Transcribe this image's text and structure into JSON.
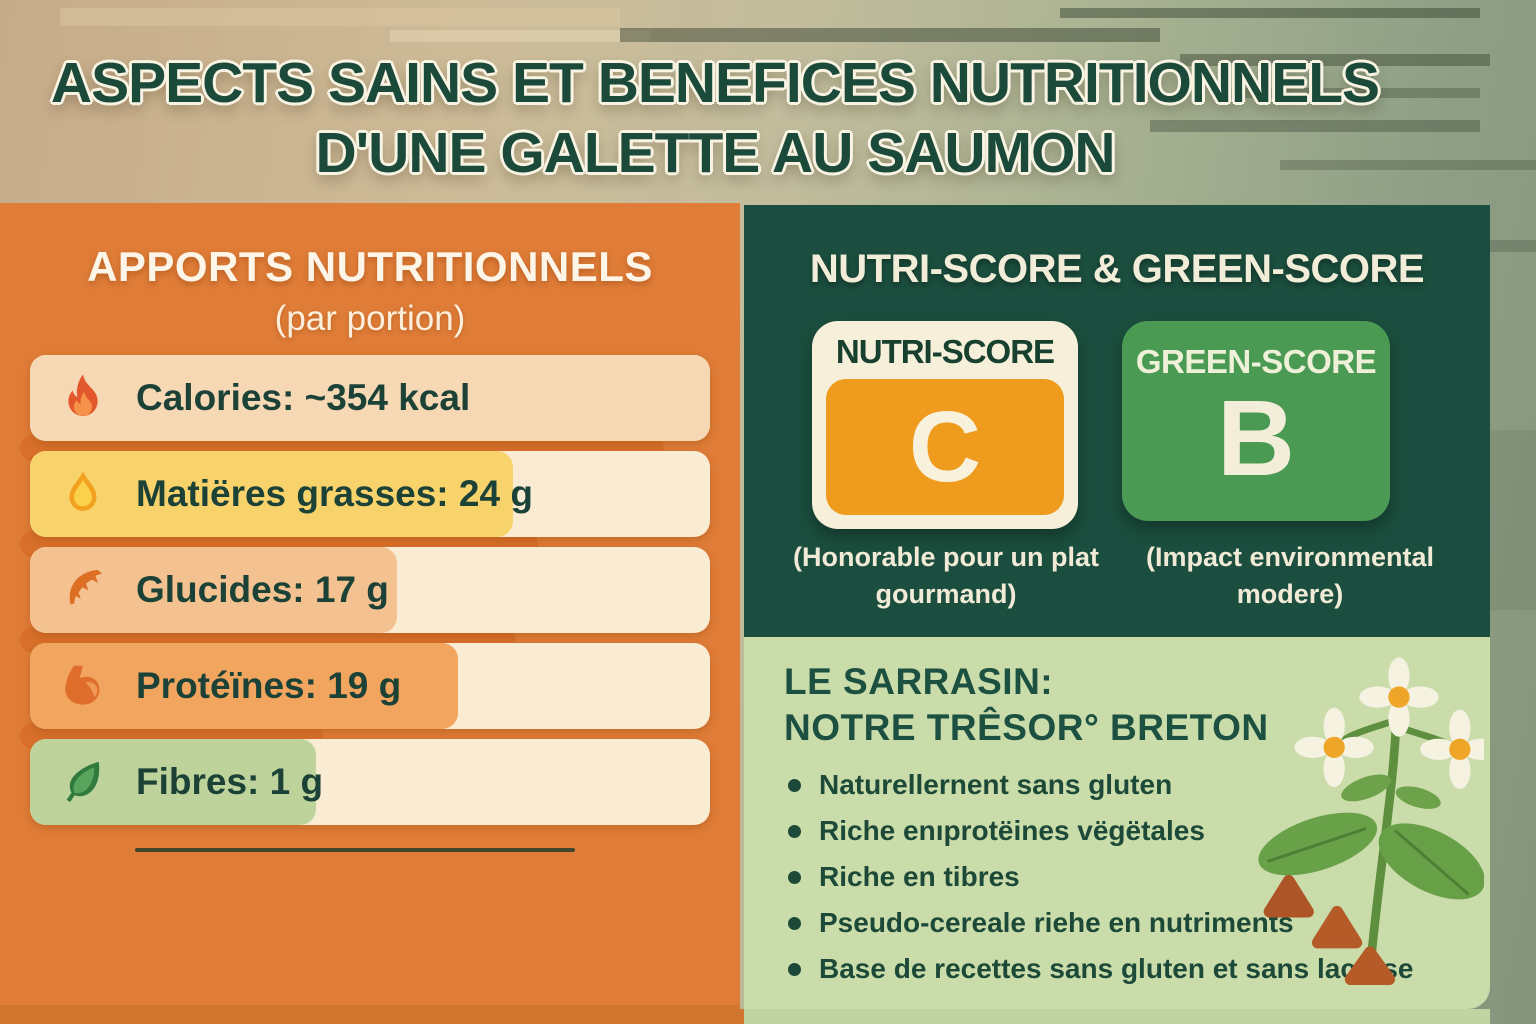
{
  "title": {
    "line1": "ASPECTS SAINS ET BENEFICES NUTRITIONNELS",
    "line2": "D'UNE GALETTE AU SAUMON"
  },
  "left_panel": {
    "heading": "APPORTS NUTRITIONNELS",
    "subheading": "(par portion)",
    "rows": [
      {
        "icon": "flame-icon",
        "label": "Calories: ~354 kcal",
        "bar_pct": 100,
        "bar_color": "#f6d8b4"
      },
      {
        "icon": "oil-drop-icon",
        "label": "Matiëres grasses: 24 g",
        "bar_pct": 71,
        "bar_color": "#f8d36c"
      },
      {
        "icon": "wheat-leaf-icon",
        "label": "Glucides: 17 g",
        "bar_pct": 54,
        "bar_color": "#f3c290"
      },
      {
        "icon": "muscle-icon",
        "label": "Protéïnes: 19 g",
        "bar_pct": 63,
        "bar_color": "#f1a55e"
      },
      {
        "icon": "leaf-icon",
        "label": "Fibres: 1 g",
        "bar_pct": 42,
        "bar_color": "#bed39c"
      }
    ],
    "accents_pct": [
      87,
      70,
      67,
      41
    ],
    "nutrition_values": {
      "calories_kcal": 354,
      "matieres_grasses_g": 24,
      "glucides_g": 17,
      "proteines_g": 19,
      "fibres_g": 1
    }
  },
  "scores_panel": {
    "heading": "NUTRI-SCORE & GREEN-SCORE",
    "nutri_score": {
      "label": "NUTRI-SCORE",
      "grade": "C",
      "caption": "(Honorable pour un plat gourmand)",
      "grade_color": "#ee9b1e"
    },
    "green_score": {
      "label": "GREEN-SCORE",
      "grade": "B",
      "caption": "(Impact environmental modere)",
      "grade_color": "#4a9a54"
    }
  },
  "sarrasin_panel": {
    "heading_line1": "LE SARRASIN:",
    "heading_line2": "NOTRE TRÊSOR° BRETON",
    "bullets": [
      "Naturellernent sans gluten",
      "Riche enıprotëines vëgëtales",
      "Riche en tibres",
      "Pseudo-cereale riehe en nutriments",
      "Base de recettes sans gluten et sans lactose"
    ]
  },
  "colors": {
    "panel_orange": "#df7c37",
    "accent_orange": "#d8702a",
    "panel_dark_green": "#1b4e3e",
    "panel_light_green": "#cbdcab",
    "title_green": "#1c4a3a",
    "cream": "#f6efda",
    "row_track_cream": "#f9ecd2",
    "text_dark": "#1c4136"
  }
}
